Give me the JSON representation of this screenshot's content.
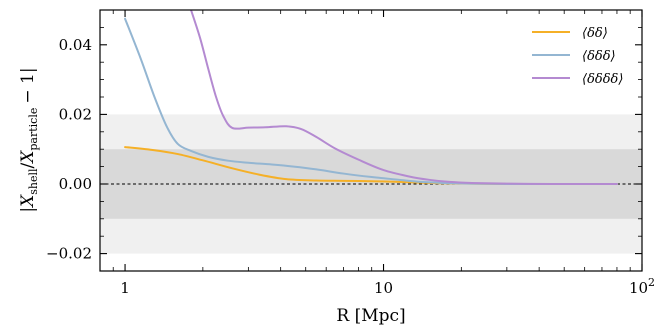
{
  "chart_data": {
    "type": "line",
    "xlabel": "R [Mpc]",
    "ylabel": "|X_shell / X_particle − 1|",
    "ylabel_parts": {
      "bar": "|",
      "x1": "X",
      "sub1": "shell",
      "slash": "/",
      "x2": "X",
      "sub2": "particle",
      "tail": "− 1|"
    },
    "xscale": "log",
    "xlim": [
      0.8,
      100
    ],
    "ylim": [
      -0.025,
      0.05
    ],
    "xticks": [
      {
        "value": 1,
        "label": "1"
      },
      {
        "value": 10,
        "label": "10"
      },
      {
        "value": 100,
        "label": "10",
        "sup": "2"
      }
    ],
    "yticks": [
      {
        "value": -0.02,
        "label": "−0.02"
      },
      {
        "value": 0.0,
        "label": "0.00"
      },
      {
        "value": 0.02,
        "label": "0.02"
      },
      {
        "value": 0.04,
        "label": "0.04"
      }
    ],
    "bands": [
      {
        "from": -0.02,
        "to": 0.02,
        "color": "#f0f0f0"
      },
      {
        "from": -0.01,
        "to": 0.01,
        "color": "#d9d9d9"
      }
    ],
    "zero_line": {
      "value": 0,
      "style": "dashed",
      "color": "#000000"
    },
    "legend_position": "top-right",
    "series": [
      {
        "name": "⟨δδ⟩",
        "color": "#f5b027",
        "x": [
          1.0,
          1.3,
          1.6,
          2.0,
          2.6,
          3.3,
          4.2,
          5.5,
          7.0,
          9.0,
          11.5,
          14.0,
          17.0,
          22.0,
          30.0,
          45.0,
          60.0,
          80.0
        ],
        "y": [
          0.0106,
          0.0097,
          0.0086,
          0.0068,
          0.0045,
          0.0027,
          0.0014,
          0.001,
          0.0009,
          0.0008,
          0.0006,
          0.0004,
          0.0002,
          0.0001,
          0.0,
          0.0,
          0.0,
          0.0
        ]
      },
      {
        "name": "⟨δδδ⟩",
        "color": "#94b6d2",
        "x": [
          1.0,
          1.15,
          1.3,
          1.45,
          1.6,
          1.8,
          2.1,
          2.5,
          3.0,
          3.7,
          4.5,
          5.5,
          7.0,
          9.0,
          11.5,
          14.0,
          17.0,
          22.0,
          30.0,
          45.0,
          60.0,
          80.0
        ],
        "y": [
          0.0475,
          0.036,
          0.025,
          0.0165,
          0.0115,
          0.0095,
          0.0078,
          0.0067,
          0.0061,
          0.0056,
          0.005,
          0.0042,
          0.003,
          0.002,
          0.0012,
          0.0006,
          0.0003,
          0.0001,
          0.0,
          0.0,
          0.0,
          0.0
        ]
      },
      {
        "name": "⟨δδδδ⟩",
        "color": "#b48ad1",
        "x": [
          1.8,
          1.95,
          2.1,
          2.25,
          2.4,
          2.6,
          3.0,
          3.5,
          4.2,
          4.8,
          5.5,
          6.5,
          8.0,
          10.0,
          12.5,
          15.0,
          18.0,
          22.0,
          30.0,
          45.0,
          60.0,
          80.0
        ],
        "y": [
          0.05,
          0.042,
          0.033,
          0.025,
          0.0195,
          0.0161,
          0.0162,
          0.0163,
          0.0166,
          0.0158,
          0.0135,
          0.0102,
          0.007,
          0.004,
          0.0022,
          0.0012,
          0.0006,
          0.0003,
          0.0001,
          0.0,
          0.0,
          0.0
        ]
      }
    ]
  }
}
